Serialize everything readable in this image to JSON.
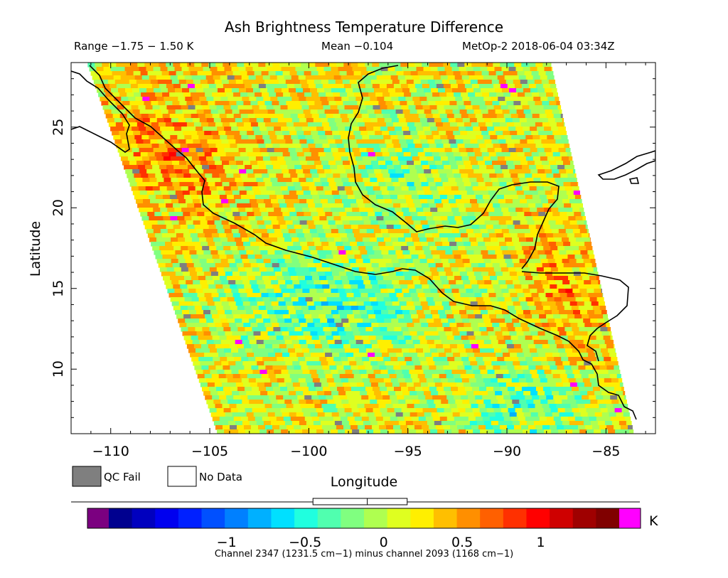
{
  "header": {
    "title": "Ash Brightness Temperature Difference",
    "range": "Range −1.75 − 1.50 K",
    "mean": "Mean −0.104",
    "satellite_time": "MetOp-2 2018-06-04 03:34Z"
  },
  "map": {
    "xlabel": "Longitude",
    "ylabel": "Latitude",
    "lon_range": [
      -112,
      -82.5
    ],
    "lat_range": [
      6,
      29
    ],
    "lon_ticks": [
      -110,
      -105,
      -100,
      -95,
      -90,
      -85
    ],
    "lat_ticks": [
      10,
      15,
      20,
      25
    ],
    "lon_tick_labels": [
      "−110",
      "−105",
      "−100",
      "−95",
      "−90",
      "−85"
    ],
    "lat_tick_labels": [
      "10",
      "15",
      "20",
      "25"
    ],
    "swath_polygon_lonlat": [
      [
        -111.2,
        29
      ],
      [
        -87.8,
        29
      ],
      [
        -83.6,
        6
      ],
      [
        -104.6,
        6
      ]
    ]
  },
  "legend": {
    "qc_fail_label": "QC Fail",
    "no_data_label": "No Data",
    "qc_fail_color": "#7f7f7f",
    "no_data_color": "#ffffff"
  },
  "colorbar": {
    "unit": "K",
    "min": -1.75,
    "max": 1.5,
    "ticks": [
      -1,
      -0.5,
      0,
      0.5,
      1
    ],
    "tick_labels": [
      "−1",
      "−0.5",
      "0",
      "0.5",
      "1"
    ],
    "under_color": "#7b0080",
    "over_color": "#ff00ff",
    "colors": [
      "#00008f",
      "#0000bf",
      "#0000ef",
      "#0020ff",
      "#0050ff",
      "#0080ff",
      "#00b0ff",
      "#00e0ff",
      "#20ffdf",
      "#50ffaf",
      "#80ff80",
      "#afff50",
      "#dfff20",
      "#ffef00",
      "#ffbf00",
      "#ff8f00",
      "#ff6000",
      "#ff3000",
      "#ff0000",
      "#cf0000",
      "#9f0000",
      "#800000"
    ],
    "mean_box": {
      "low": -0.45,
      "mean": -0.104,
      "high": 0.15
    },
    "footnote": "Channel 2347 (1231.5 cm−1) minus channel 2093 (1168 cm−1)"
  }
}
